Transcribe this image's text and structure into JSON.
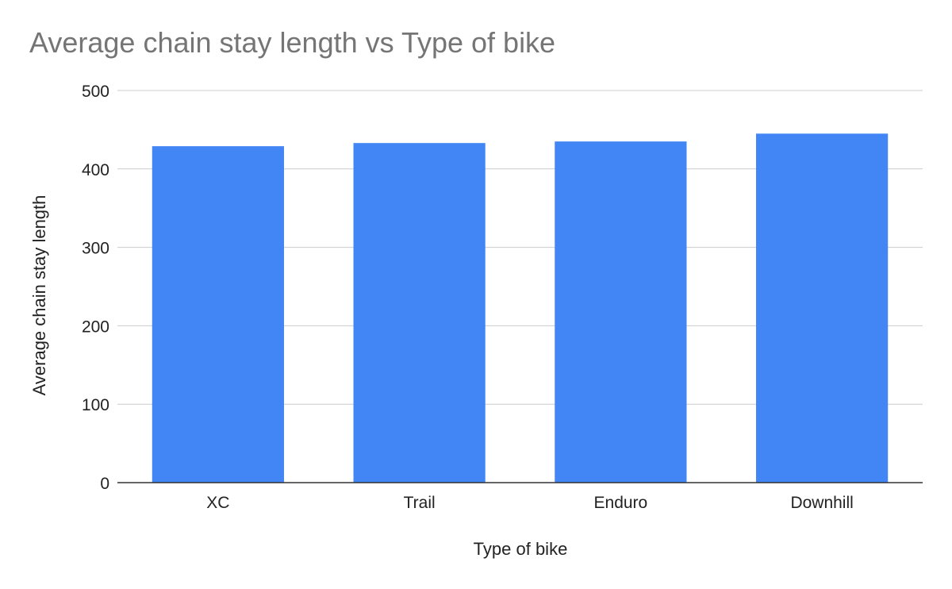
{
  "chart_data": {
    "type": "bar",
    "title": "Average chain stay length vs Type of bike",
    "xlabel": "Type of bike",
    "ylabel": "Average chain stay length",
    "categories": [
      "XC",
      "Trail",
      "Enduro",
      "Downhill"
    ],
    "values": [
      429,
      433,
      435,
      445
    ],
    "ylim": [
      0,
      500
    ],
    "yticks": [
      0,
      100,
      200,
      300,
      400,
      500
    ],
    "grid": true,
    "legend": "none",
    "colors": {
      "bar": "#4285f4",
      "title": "#757575",
      "gridline": "#cccccc",
      "axis": "#333333",
      "text": "#222222"
    }
  }
}
